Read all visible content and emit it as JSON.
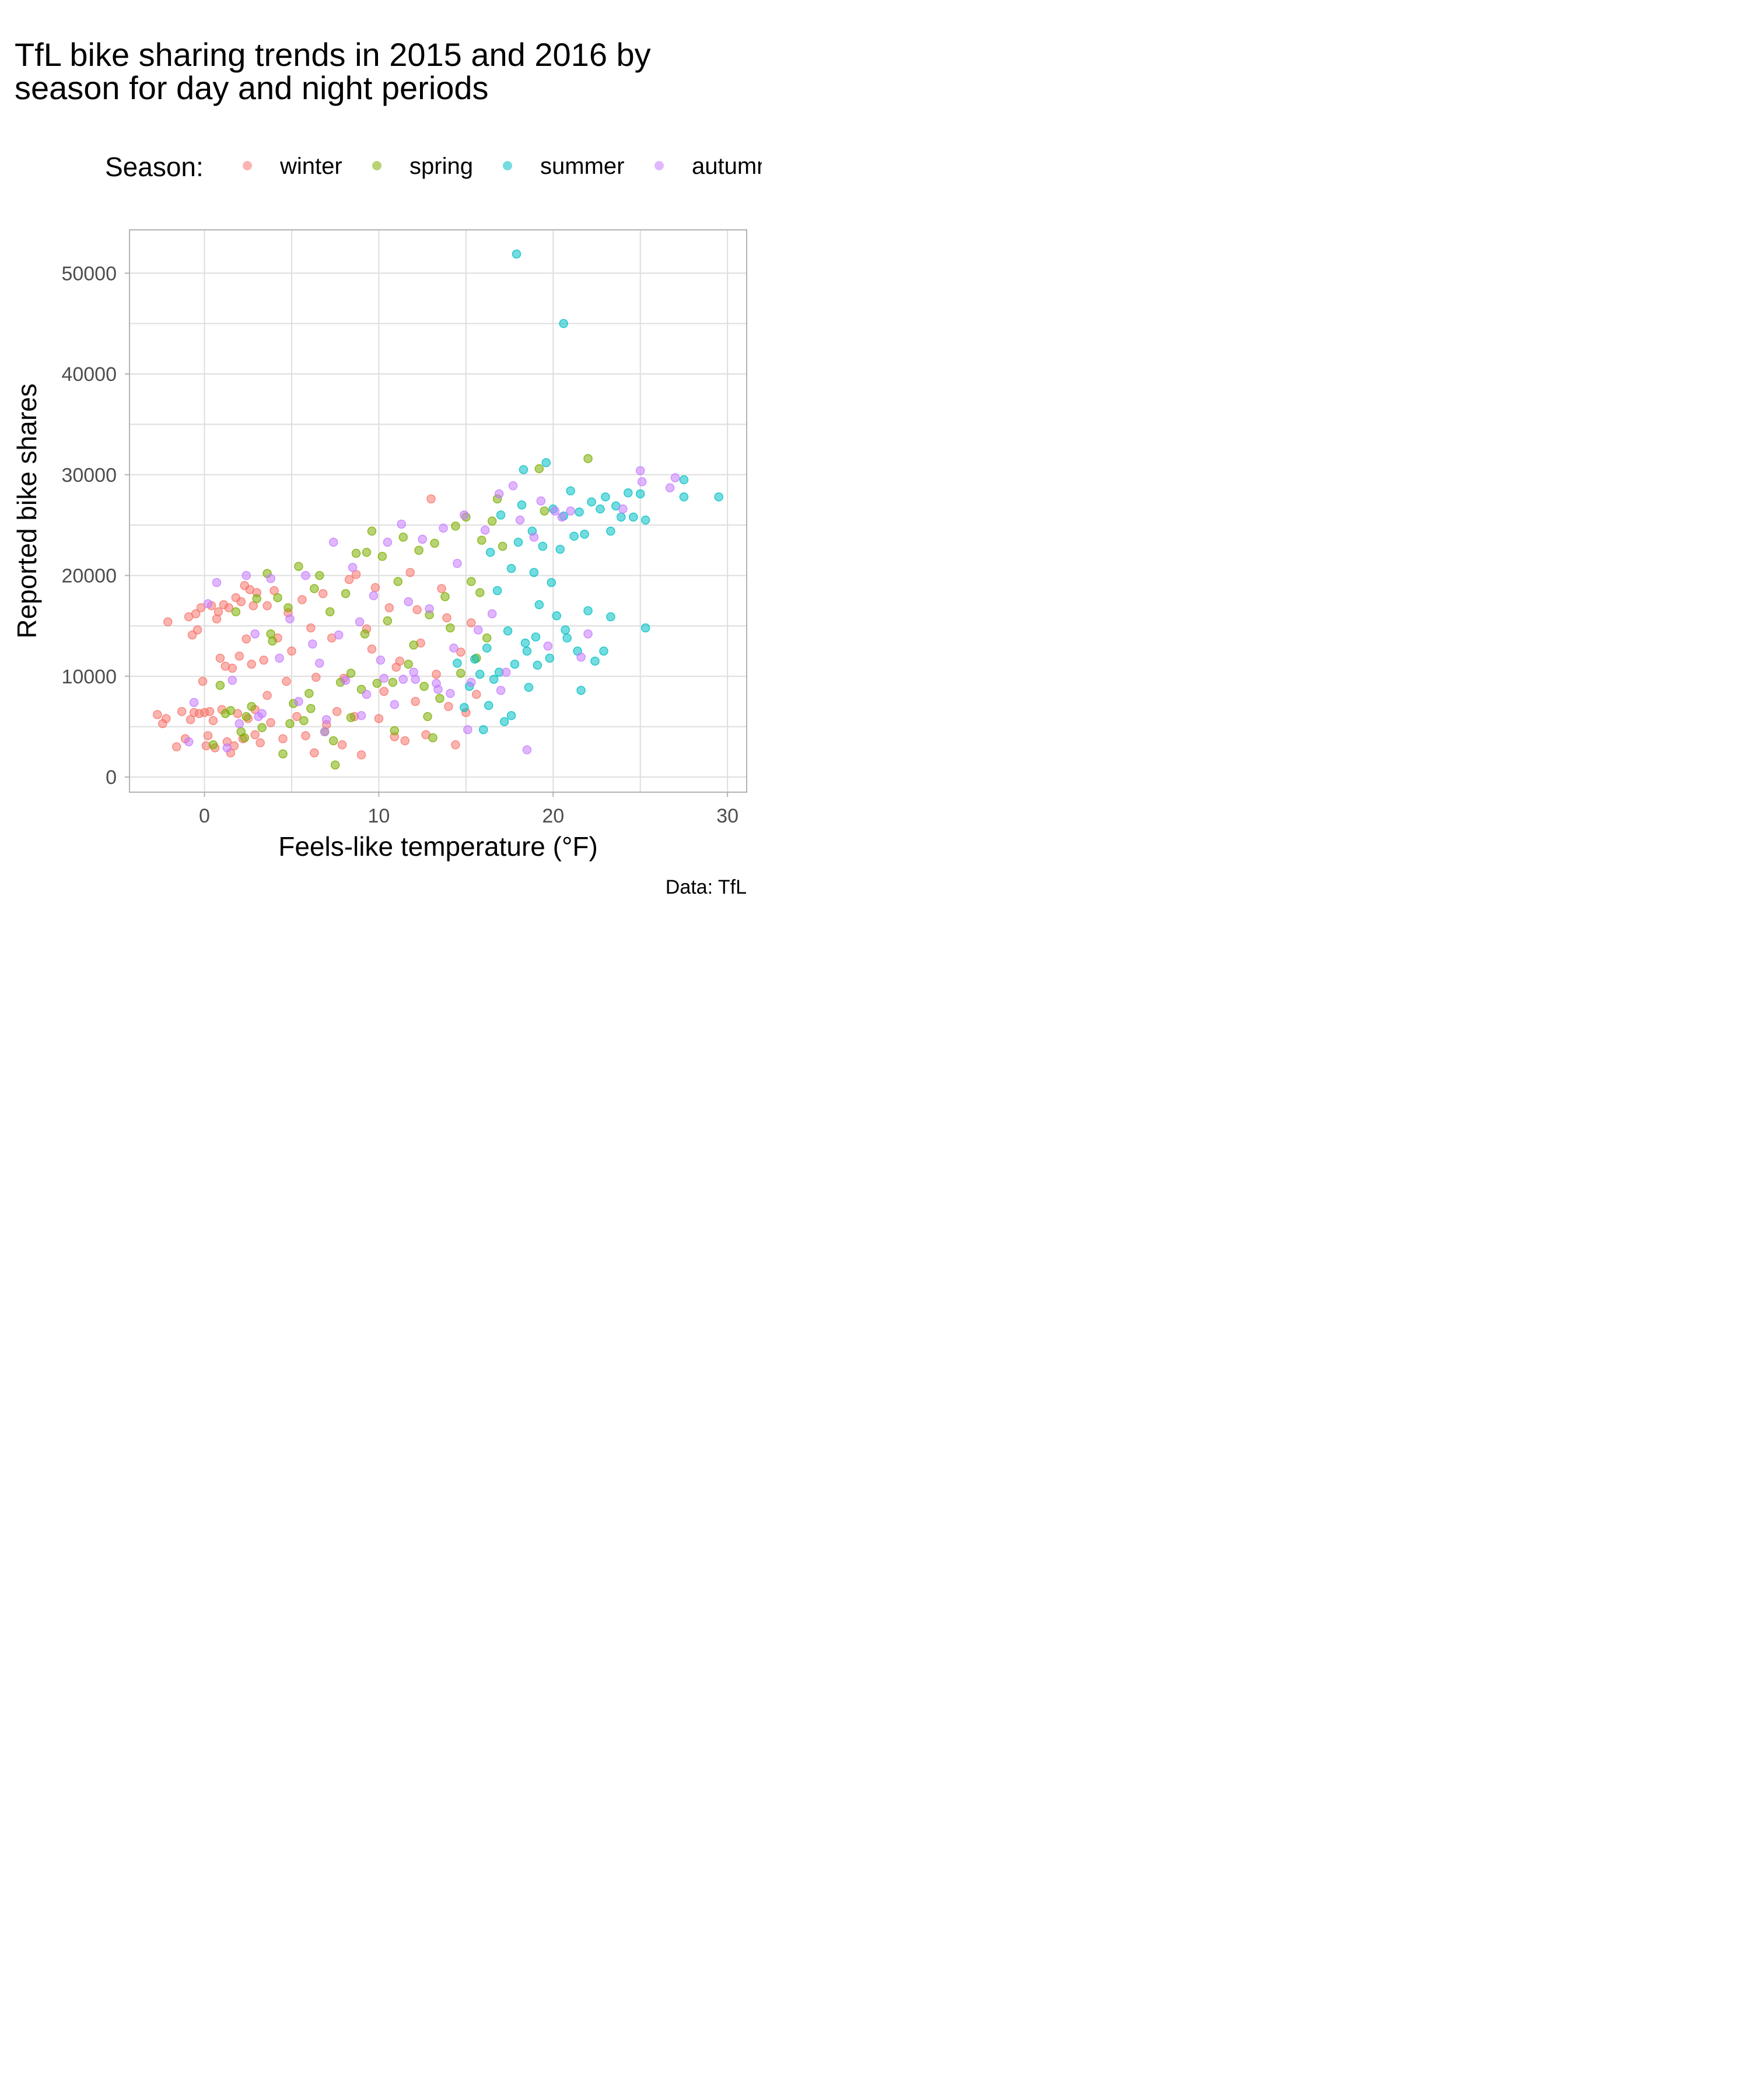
{
  "chart_data": {
    "type": "scatter",
    "title": "TfL bike sharing trends in 2015 and 2016 by season for day and night periods",
    "title_lines": [
      "TfL bike sharing trends in 2015 and 2016 by",
      "season for day and night periods"
    ],
    "xlabel": "Feels-like temperature (°F)",
    "ylabel": "Reported bike shares",
    "caption": "Data: TfL",
    "xlim": [
      -4.3,
      31.1
    ],
    "ylim": [
      -1500,
      54300
    ],
    "x_ticks": [
      0,
      10,
      20,
      30
    ],
    "y_ticks": [
      0,
      10000,
      20000,
      30000,
      40000,
      50000
    ],
    "grid": true,
    "legend": {
      "title": "Season:",
      "position": "top",
      "entries": [
        {
          "label": "winter",
          "color": "#F8766D"
        },
        {
          "label": "spring",
          "color": "#7CAE00"
        },
        {
          "label": "summer",
          "color": "#00BFC4"
        },
        {
          "label": "autumn",
          "color": "#C77CFF"
        }
      ]
    },
    "point_opacity": 0.55,
    "series": [
      {
        "name": "winter",
        "color": "#F8766D",
        "points": [
          [
            -2.7,
            6200
          ],
          [
            -2.4,
            5300
          ],
          [
            -2.2,
            5800
          ],
          [
            -2.1,
            15400
          ],
          [
            -1.6,
            3000
          ],
          [
            -1.3,
            6500
          ],
          [
            -1.1,
            3800
          ],
          [
            -0.9,
            15900
          ],
          [
            -0.8,
            5700
          ],
          [
            -0.7,
            14100
          ],
          [
            -0.6,
            6400
          ],
          [
            -0.5,
            16200
          ],
          [
            -0.4,
            14600
          ],
          [
            -0.3,
            6300
          ],
          [
            -0.2,
            16800
          ],
          [
            -0.1,
            9500
          ],
          [
            0,
            6400
          ],
          [
            0.1,
            3100
          ],
          [
            0.2,
            4100
          ],
          [
            0.3,
            6500
          ],
          [
            0.4,
            17000
          ],
          [
            0.5,
            5600
          ],
          [
            0.6,
            2900
          ],
          [
            0.7,
            15700
          ],
          [
            0.8,
            16400
          ],
          [
            0.9,
            11800
          ],
          [
            1.0,
            6700
          ],
          [
            1.1,
            17100
          ],
          [
            1.2,
            11000
          ],
          [
            1.3,
            3500
          ],
          [
            1.4,
            16800
          ],
          [
            1.5,
            2400
          ],
          [
            1.6,
            10800
          ],
          [
            1.7,
            3100
          ],
          [
            1.8,
            17800
          ],
          [
            1.9,
            6300
          ],
          [
            2.0,
            12000
          ],
          [
            2.1,
            17400
          ],
          [
            2.2,
            3800
          ],
          [
            2.3,
            19000
          ],
          [
            2.4,
            13700
          ],
          [
            2.5,
            5800
          ],
          [
            2.6,
            18600
          ],
          [
            2.7,
            11200
          ],
          [
            2.8,
            17000
          ],
          [
            2.9,
            6700
          ],
          [
            3.0,
            18300
          ],
          [
            3.2,
            3400
          ],
          [
            3.4,
            11600
          ],
          [
            3.6,
            17000
          ],
          [
            3.8,
            5400
          ],
          [
            4.0,
            18500
          ],
          [
            4.2,
            13800
          ],
          [
            4.5,
            3800
          ],
          [
            4.8,
            16300
          ],
          [
            5.0,
            12500
          ],
          [
            5.3,
            6000
          ],
          [
            5.6,
            17600
          ],
          [
            5.8,
            4100
          ],
          [
            6.1,
            14800
          ],
          [
            6.4,
            9900
          ],
          [
            6.8,
            18200
          ],
          [
            7.0,
            5200
          ],
          [
            7.3,
            13800
          ],
          [
            7.6,
            6500
          ],
          [
            8.0,
            9800
          ],
          [
            8.3,
            19600
          ],
          [
            8.6,
            6000
          ],
          [
            9.0,
            2200
          ],
          [
            9.3,
            14700
          ],
          [
            9.6,
            12700
          ],
          [
            10.0,
            5800
          ],
          [
            10.3,
            8500
          ],
          [
            10.6,
            16800
          ],
          [
            10.9,
            4000
          ],
          [
            11.2,
            11500
          ],
          [
            11.5,
            3600
          ],
          [
            11.8,
            20300
          ],
          [
            12.1,
            7500
          ],
          [
            12.4,
            13300
          ],
          [
            12.7,
            4200
          ],
          [
            13.0,
            27600
          ],
          [
            13.3,
            10200
          ],
          [
            13.6,
            18700
          ],
          [
            14.0,
            7000
          ],
          [
            14.4,
            3200
          ],
          [
            14.7,
            12400
          ],
          [
            15.0,
            6400
          ],
          [
            15.3,
            15300
          ],
          [
            15.6,
            8200
          ],
          [
            8.7,
            20100
          ],
          [
            6.3,
            2400
          ],
          [
            3.6,
            8100
          ],
          [
            2.9,
            4200
          ],
          [
            11.0,
            10900
          ],
          [
            12.2,
            16600
          ],
          [
            9.8,
            18800
          ],
          [
            4.7,
            9500
          ],
          [
            7.9,
            3200
          ],
          [
            13.9,
            15800
          ]
        ]
      },
      {
        "name": "spring",
        "color": "#7CAE00",
        "points": [
          [
            0.5,
            3200
          ],
          [
            0.9,
            9100
          ],
          [
            1.2,
            6300
          ],
          [
            1.5,
            6600
          ],
          [
            1.8,
            16400
          ],
          [
            2.1,
            4500
          ],
          [
            2.4,
            6000
          ],
          [
            2.7,
            7000
          ],
          [
            3.0,
            17700
          ],
          [
            3.3,
            4900
          ],
          [
            3.6,
            20200
          ],
          [
            3.9,
            13500
          ],
          [
            4.2,
            17800
          ],
          [
            4.5,
            2300
          ],
          [
            4.8,
            16800
          ],
          [
            5.1,
            7300
          ],
          [
            5.4,
            20900
          ],
          [
            5.7,
            5600
          ],
          [
            6.0,
            8300
          ],
          [
            6.3,
            18700
          ],
          [
            6.6,
            20000
          ],
          [
            6.9,
            4500
          ],
          [
            7.2,
            16400
          ],
          [
            7.5,
            1200
          ],
          [
            7.8,
            9400
          ],
          [
            8.1,
            18200
          ],
          [
            8.4,
            10300
          ],
          [
            8.7,
            22200
          ],
          [
            9.0,
            8700
          ],
          [
            9.3,
            22300
          ],
          [
            9.6,
            24400
          ],
          [
            9.9,
            9300
          ],
          [
            10.2,
            21900
          ],
          [
            10.5,
            15500
          ],
          [
            10.8,
            9400
          ],
          [
            11.1,
            19400
          ],
          [
            11.4,
            23800
          ],
          [
            11.7,
            11200
          ],
          [
            12.0,
            13100
          ],
          [
            12.3,
            22500
          ],
          [
            12.6,
            9000
          ],
          [
            12.9,
            16100
          ],
          [
            13.2,
            23200
          ],
          [
            13.5,
            7800
          ],
          [
            13.8,
            17900
          ],
          [
            14.1,
            14800
          ],
          [
            14.4,
            24900
          ],
          [
            14.7,
            10300
          ],
          [
            15.0,
            25800
          ],
          [
            15.3,
            19400
          ],
          [
            15.6,
            11800
          ],
          [
            15.9,
            23500
          ],
          [
            16.2,
            13800
          ],
          [
            16.5,
            25400
          ],
          [
            16.8,
            27600
          ],
          [
            17.1,
            22900
          ],
          [
            19.2,
            30600
          ],
          [
            22.0,
            31600
          ],
          [
            19.5,
            26400
          ],
          [
            3.8,
            14200
          ],
          [
            6.1,
            6800
          ],
          [
            8.4,
            5900
          ],
          [
            10.9,
            4600
          ],
          [
            13.1,
            3900
          ],
          [
            2.3,
            3900
          ],
          [
            4.9,
            5300
          ],
          [
            7.4,
            3600
          ],
          [
            9.2,
            14200
          ],
          [
            12.8,
            6000
          ],
          [
            15.8,
            18300
          ]
        ]
      },
      {
        "name": "summer",
        "color": "#00BFC4",
        "points": [
          [
            14.5,
            11300
          ],
          [
            14.9,
            6900
          ],
          [
            15.2,
            9000
          ],
          [
            15.5,
            11700
          ],
          [
            15.8,
            10200
          ],
          [
            16.0,
            4700
          ],
          [
            16.2,
            12800
          ],
          [
            16.4,
            22300
          ],
          [
            16.6,
            9700
          ],
          [
            16.8,
            18500
          ],
          [
            17.0,
            26000
          ],
          [
            17.2,
            5500
          ],
          [
            17.4,
            14500
          ],
          [
            17.6,
            20700
          ],
          [
            17.8,
            11200
          ],
          [
            18.0,
            23300
          ],
          [
            18.2,
            27000
          ],
          [
            18.4,
            13300
          ],
          [
            18.6,
            8900
          ],
          [
            18.8,
            24400
          ],
          [
            19.0,
            13900
          ],
          [
            19.2,
            17100
          ],
          [
            19.4,
            22900
          ],
          [
            19.6,
            31200
          ],
          [
            19.8,
            11800
          ],
          [
            20.0,
            26600
          ],
          [
            20.2,
            16000
          ],
          [
            20.4,
            22600
          ],
          [
            20.6,
            25900
          ],
          [
            20.8,
            13800
          ],
          [
            21.0,
            28400
          ],
          [
            21.2,
            23900
          ],
          [
            21.4,
            12500
          ],
          [
            21.6,
            8600
          ],
          [
            21.8,
            24100
          ],
          [
            22.0,
            16500
          ],
          [
            22.2,
            27300
          ],
          [
            22.4,
            11500
          ],
          [
            22.7,
            26600
          ],
          [
            23.0,
            27800
          ],
          [
            23.3,
            24400
          ],
          [
            23.6,
            26900
          ],
          [
            23.9,
            25800
          ],
          [
            24.3,
            28200
          ],
          [
            24.6,
            25800
          ],
          [
            25.0,
            28100
          ],
          [
            25.3,
            25500
          ],
          [
            25.3,
            14800
          ],
          [
            27.5,
            27800
          ],
          [
            27.5,
            29500
          ],
          [
            29.5,
            27800
          ],
          [
            17.9,
            51900
          ],
          [
            20.6,
            45000
          ],
          [
            18.5,
            12500
          ],
          [
            19.1,
            11100
          ],
          [
            16.9,
            10400
          ],
          [
            18.3,
            30500
          ],
          [
            21.5,
            26300
          ],
          [
            22.9,
            12500
          ],
          [
            23.3,
            15900
          ],
          [
            20.7,
            14600
          ],
          [
            17.6,
            6100
          ],
          [
            16.3,
            7100
          ],
          [
            19.9,
            19300
          ],
          [
            18.9,
            20300
          ]
        ]
      },
      {
        "name": "autumn",
        "color": "#C77CFF",
        "points": [
          [
            -0.9,
            3500
          ],
          [
            -0.6,
            7400
          ],
          [
            0.2,
            17200
          ],
          [
            0.7,
            19300
          ],
          [
            1.3,
            2900
          ],
          [
            1.6,
            9600
          ],
          [
            2.0,
            5300
          ],
          [
            2.4,
            20000
          ],
          [
            2.9,
            14200
          ],
          [
            3.3,
            6300
          ],
          [
            3.8,
            19700
          ],
          [
            4.3,
            11800
          ],
          [
            4.9,
            15700
          ],
          [
            5.4,
            7500
          ],
          [
            5.8,
            20000
          ],
          [
            6.2,
            13200
          ],
          [
            6.6,
            11300
          ],
          [
            7.0,
            5700
          ],
          [
            7.4,
            23300
          ],
          [
            7.7,
            14100
          ],
          [
            8.1,
            9600
          ],
          [
            8.5,
            20800
          ],
          [
            8.9,
            15400
          ],
          [
            9.3,
            8200
          ],
          [
            9.7,
            18000
          ],
          [
            10.1,
            11600
          ],
          [
            10.5,
            23300
          ],
          [
            10.9,
            7200
          ],
          [
            11.3,
            25100
          ],
          [
            11.7,
            17400
          ],
          [
            12.1,
            9700
          ],
          [
            12.5,
            23600
          ],
          [
            12.9,
            16700
          ],
          [
            13.3,
            9300
          ],
          [
            13.7,
            24700
          ],
          [
            14.1,
            8300
          ],
          [
            14.5,
            21200
          ],
          [
            14.9,
            26000
          ],
          [
            15.3,
            9400
          ],
          [
            15.7,
            14600
          ],
          [
            16.1,
            24500
          ],
          [
            16.5,
            16200
          ],
          [
            16.9,
            28100
          ],
          [
            17.3,
            10400
          ],
          [
            17.7,
            28900
          ],
          [
            18.1,
            25500
          ],
          [
            18.5,
            2700
          ],
          [
            18.9,
            23800
          ],
          [
            19.3,
            27400
          ],
          [
            19.7,
            13000
          ],
          [
            20.1,
            26400
          ],
          [
            20.5,
            25800
          ],
          [
            21.0,
            26400
          ],
          [
            21.6,
            11900
          ],
          [
            22.0,
            14200
          ],
          [
            24.0,
            26600
          ],
          [
            25.0,
            30400
          ],
          [
            25.1,
            29300
          ],
          [
            27.0,
            29700
          ],
          [
            26.7,
            28700
          ],
          [
            13.4,
            8700
          ],
          [
            9.0,
            6100
          ],
          [
            6.9,
            4500
          ],
          [
            12.0,
            10400
          ],
          [
            14.3,
            12800
          ],
          [
            17.0,
            8600
          ],
          [
            11.4,
            9700
          ],
          [
            15.1,
            4700
          ],
          [
            3.1,
            6000
          ],
          [
            10.3,
            9800
          ]
        ]
      }
    ]
  }
}
